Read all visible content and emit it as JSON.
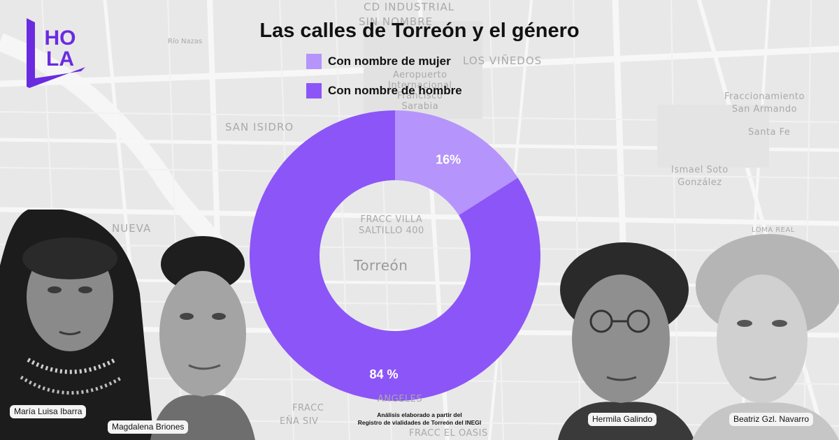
{
  "logo": {
    "text_top": "HO",
    "text_bottom": "LA",
    "color": "#6a2be0"
  },
  "map": {
    "labels": {
      "cd_industrial": "CD INDUSTRIAL",
      "sin_nombre": "SIN NOMBRE",
      "los_vinedos": "LOS VIÑEDOS",
      "aeropuerto": "Aeropuerto\nInternacional\nFrancisco\nSarabia",
      "fracc_san_armando": "Fraccionamiento\nSan Armando",
      "santa_fe": "Santa Fe",
      "san_isidro": "SAN ISIDRO",
      "ismael_soto": "Ismael Soto\nGonzález",
      "nueva": "NUEVA",
      "loma_real": "LOMA REAL",
      "fracc_villa": "FRACC VILLA\nSALTILLO 400",
      "torreon": "Torreón",
      "fracc_bottom": "FRACC",
      "ena_siv": "EÑA SIV",
      "angeles": "ANGELES",
      "fracc_oasis": "FRACC EL OASIS",
      "nazas": "Río Nazas"
    }
  },
  "chart_data": {
    "type": "pie",
    "donut": true,
    "title": "Las calles de Torreón y el género",
    "legend_position": "top",
    "series": [
      {
        "name": "Con nombre de mujer",
        "value": 16,
        "label": "16%",
        "color": "#b594fb"
      },
      {
        "name": "Con nombre de hombre",
        "value": 84,
        "label": "84 %",
        "color": "#8c55f7"
      }
    ]
  },
  "source": {
    "line1": "Análisis elaborado a partir del",
    "line2": "Registro de vialidades de Torreón del INEGI"
  },
  "portraits": [
    {
      "name": "María Luisa Ibarra"
    },
    {
      "name": "Magdalena Briones"
    },
    {
      "name": "Hermila Galindo"
    },
    {
      "name": "Beatriz Gzl. Navarro"
    }
  ]
}
